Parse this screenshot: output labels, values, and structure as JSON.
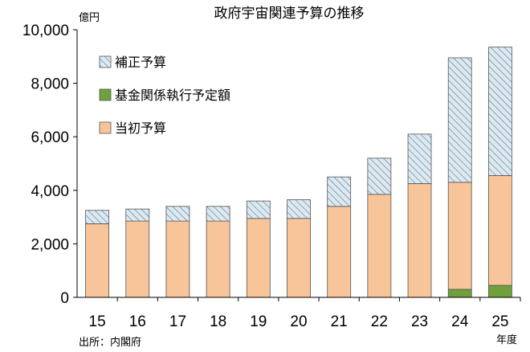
{
  "chart_data": {
    "type": "bar",
    "stacked": true,
    "title": "政府宇宙関連予算の推移",
    "yunit": "億円",
    "xunit": "年度",
    "source": "出所：内閣府",
    "categories": [
      "15",
      "16",
      "17",
      "18",
      "19",
      "20",
      "21",
      "22",
      "23",
      "24",
      "25"
    ],
    "ylim": [
      0,
      10000
    ],
    "yticks": [
      0,
      2000,
      4000,
      6000,
      8000,
      10000
    ],
    "ytick_labels": [
      "0",
      "2,000",
      "4,000",
      "6,000",
      "8,000",
      "10,000"
    ],
    "grid": false,
    "legend_position": "top-left",
    "legend_order": [
      2,
      0,
      1
    ],
    "series": [
      {
        "name": "基金関係執行予定額",
        "values": [
          0,
          0,
          0,
          0,
          0,
          0,
          0,
          0,
          0,
          300,
          450
        ],
        "color": "#70a03c",
        "pattern": "solid"
      },
      {
        "name": "当初予算",
        "values": [
          2750,
          2850,
          2850,
          2850,
          2950,
          2950,
          3400,
          3850,
          4250,
          4000,
          4100
        ],
        "color": "#f8c49a",
        "pattern": "solid"
      },
      {
        "name": "補正予算",
        "values": [
          500,
          450,
          550,
          550,
          650,
          700,
          1100,
          1350,
          1850,
          4650,
          4800
        ],
        "color": "#d6e6ef",
        "pattern": "hatch"
      }
    ]
  }
}
